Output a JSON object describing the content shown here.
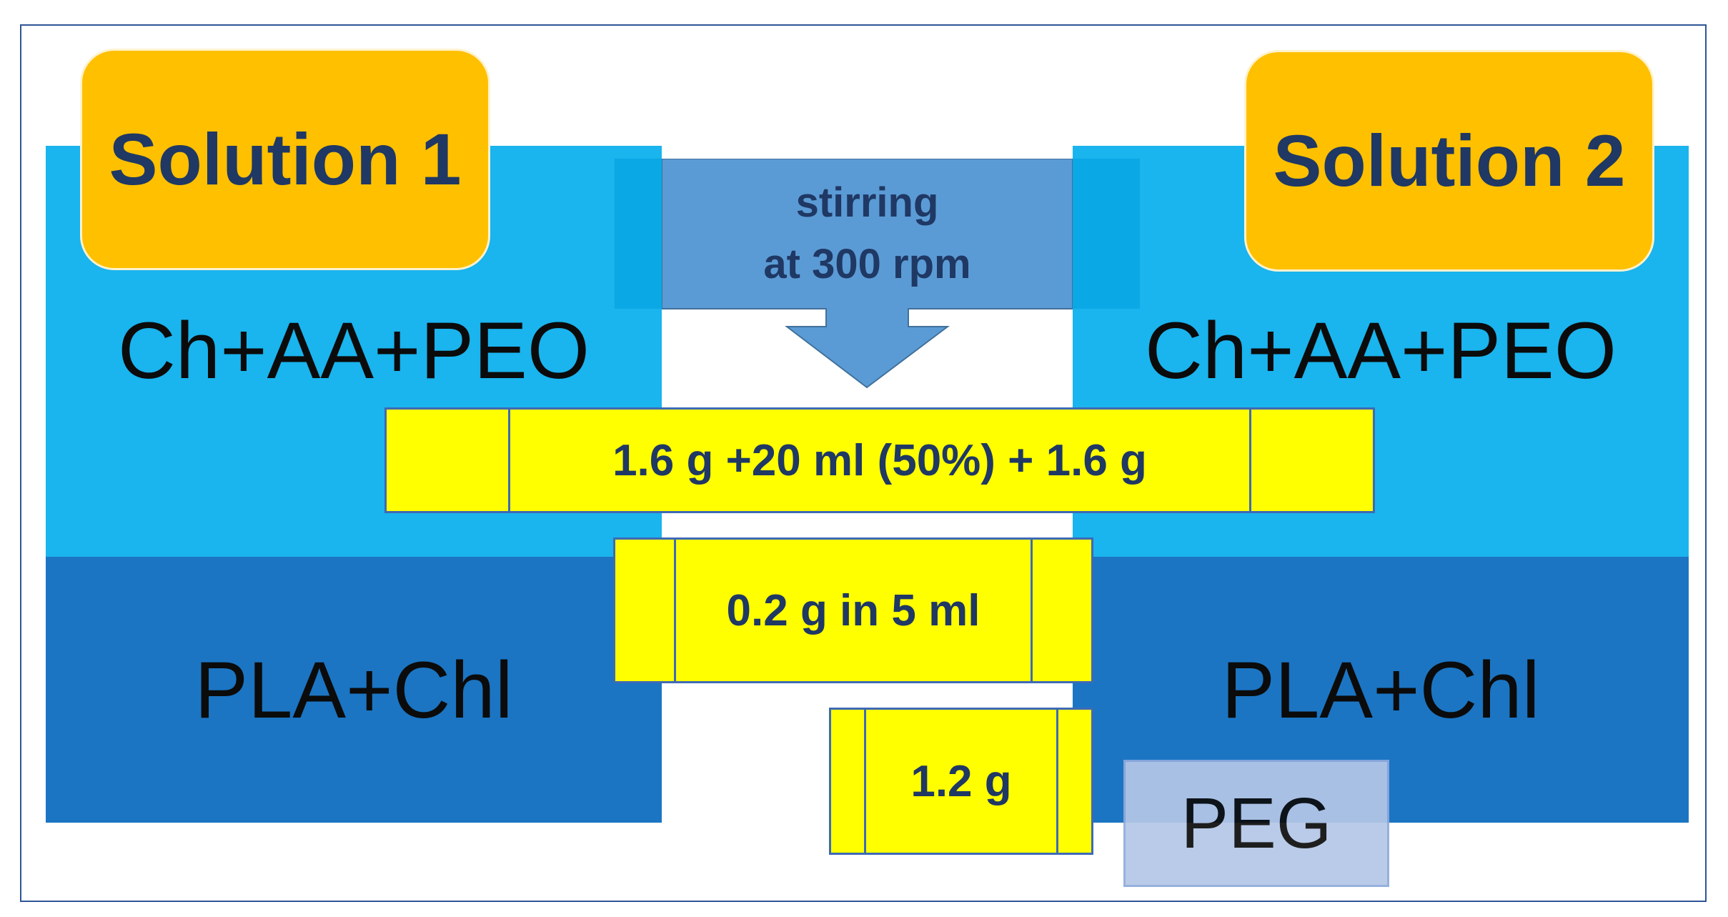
{
  "solution1": {
    "tag": "Solution 1",
    "top_label": "Ch+AA+PEO",
    "bottom_label": "PLA+Chl"
  },
  "solution2": {
    "tag": "Solution 2",
    "top_label": "Ch+AA+PEO",
    "bottom_label": "PLA+Chl"
  },
  "arrow": {
    "line1": "stirring",
    "line2": "at 300 rpm"
  },
  "boxes": {
    "row1": "1.6 g +20 ml (50%) + 1.6 g",
    "row2": "0.2 g in 5 ml",
    "row3": "1.2 g"
  },
  "peg_label": "PEG",
  "colors": {
    "light_blue": "#1ab4ee",
    "dark_blue": "#1b75c3",
    "tag_orange": "#ffc000",
    "box_yellow": "#ffff00",
    "arrow_blue": "#5b9bd5"
  }
}
